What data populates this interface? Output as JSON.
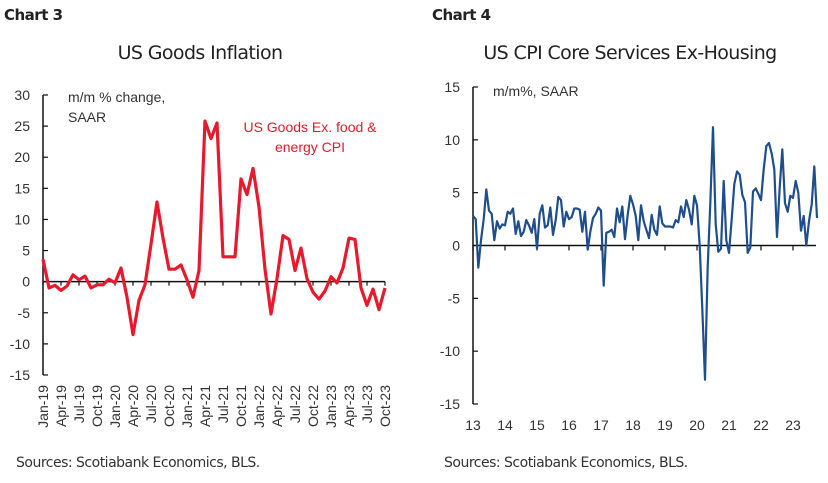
{
  "chart_data": [
    {
      "type": "line",
      "label": "Chart 3",
      "title": "US Goods Inflation",
      "ylabel": "m/m % change, SAAR",
      "ylabel_lines": [
        "m/m % change,",
        "SAAR"
      ],
      "ylim": [
        -15,
        30
      ],
      "yticks": [
        30,
        25,
        20,
        15,
        10,
        5,
        0,
        -5,
        -10,
        -15
      ],
      "xticklabels": [
        "Jan-19",
        "Apr-19",
        "Jul-19",
        "Oct-19",
        "Jan-20",
        "Apr-20",
        "Jul-20",
        "Oct-20",
        "Jan-21",
        "Apr-21",
        "Jul-21",
        "Oct-21",
        "Jan-22",
        "Apr-22",
        "Jul-22",
        "Oct-22",
        "Jan-23",
        "Apr-23",
        "Jul-23",
        "Oct-23"
      ],
      "x_start": "Jan-19",
      "x_frequency": "monthly",
      "grid": false,
      "series": [
        {
          "name": "US Goods Ex. food & energy CPI",
          "name_lines": [
            "US Goods Ex. food &",
            "energy CPI"
          ],
          "color": "#e8192c",
          "values": [
            3.6,
            -1.0,
            -0.6,
            -1.4,
            -0.7,
            1.1,
            0.3,
            0.9,
            -1.0,
            -0.5,
            -0.5,
            0.4,
            -0.2,
            2.2,
            -2.5,
            -8.5,
            -3.0,
            -0.5,
            6.0,
            12.8,
            7.0,
            2.0,
            2.0,
            2.7,
            0.3,
            -2.5,
            1.8,
            25.8,
            23.0,
            25.5,
            4.0,
            4.0,
            4.0,
            16.5,
            14.0,
            18.2,
            12.0,
            2.0,
            -5.2,
            0.5,
            7.4,
            6.8,
            1.8,
            5.4,
            0.5,
            -1.7,
            -2.8,
            -1.5,
            0.8,
            -0.2,
            2.2,
            7.0,
            6.8,
            -1.0,
            -3.8,
            -1.2,
            -4.5,
            -1.0
          ]
        }
      ],
      "source": "Sources: Scotiabank Economics, BLS."
    },
    {
      "type": "line",
      "label": "Chart 4",
      "title": "US CPI Core Services Ex-Housing",
      "ylabel": "m/m%, SAAR",
      "ylim": [
        -15,
        15
      ],
      "yticks": [
        15,
        10,
        5,
        0,
        -5,
        -10,
        -15
      ],
      "xticklabels": [
        "13",
        "14",
        "15",
        "16",
        "17",
        "18",
        "19",
        "20",
        "21",
        "22",
        "23"
      ],
      "x_start": "Jan-13",
      "x_frequency": "monthly",
      "grid": false,
      "series": [
        {
          "color": "#1f4e8c",
          "values": [
            2.8,
            2.5,
            -2.1,
            0.5,
            2.5,
            5.3,
            3.3,
            3.0,
            0.5,
            2.3,
            1.6,
            2.0,
            1.9,
            3.2,
            3.0,
            3.5,
            1.1,
            2.3,
            0.9,
            1.3,
            2.4,
            1.9,
            1.2,
            2.5,
            -0.3,
            3.0,
            3.8,
            1.7,
            1.9,
            3.6,
            1.0,
            2.4,
            4.6,
            4.3,
            1.8,
            3.2,
            2.5,
            2.7,
            3.5,
            3.5,
            3.4,
            1.3,
            3.2,
            -0.4,
            1.3,
            2.6,
            3.0,
            3.6,
            3.3,
            -3.8,
            1.2,
            1.3,
            1.5,
            0.8,
            3.5,
            2.2,
            3.7,
            0.6,
            2.9,
            4.7,
            3.9,
            2.8,
            0.5,
            3.8,
            2.3,
            1.5,
            0.7,
            2.9,
            1.5,
            1.0,
            3.7,
            2.1,
            1.8,
            1.8,
            1.8,
            1.7,
            2.4,
            2.2,
            3.7,
            2.7,
            4.3,
            3.4,
            2.0,
            4.7,
            3.8,
            0.0,
            -6.0,
            -12.7,
            -2.0,
            4.0,
            11.2,
            2.0,
            -0.6,
            -0.3,
            6.1,
            0.5,
            -0.7,
            2.5,
            5.8,
            7.0,
            6.7,
            4.8,
            4.1,
            -0.7,
            -0.2,
            5.1,
            5.4,
            4.9,
            4.3,
            7.2,
            9.4,
            9.7,
            8.7,
            7.2,
            0.8,
            5.5,
            9.1,
            4.0,
            3.2,
            4.7,
            4.5,
            6.1,
            5.0,
            1.4,
            2.8,
            0.0,
            2.3,
            3.9,
            7.5,
            2.6
          ]
        }
      ],
      "source": "Sources: Scotiabank Economics, BLS."
    }
  ]
}
